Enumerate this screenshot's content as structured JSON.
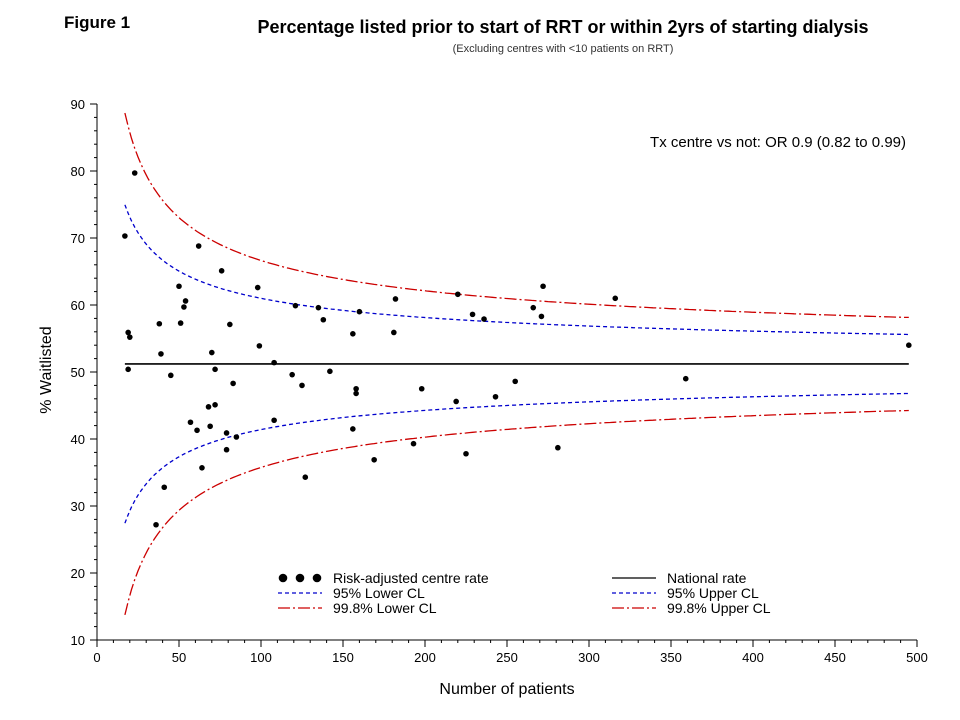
{
  "figure_label": "Figure 1",
  "chart_data": {
    "type": "scatter",
    "title": "Percentage listed prior to start of RRT or within 2yrs of starting dialysis",
    "subtitle": "(Excluding centres with <10 patients on RRT)",
    "xlabel": "Number of patients",
    "ylabel": "% Waitlisted",
    "xlim": [
      0,
      500
    ],
    "ylim": [
      10,
      90
    ],
    "xticks": [
      0,
      50,
      100,
      150,
      200,
      250,
      300,
      350,
      400,
      450,
      500
    ],
    "yticks": [
      10,
      20,
      30,
      40,
      50,
      60,
      70,
      80,
      90
    ],
    "annotation": "Tx centre vs not: OR 0.9 (0.82 to 0.99)",
    "national_rate": 51.2,
    "legend": {
      "position": "bottom-right",
      "entries": [
        {
          "key": "points",
          "label": "Risk-adjusted centre rate"
        },
        {
          "key": "national",
          "label": "National rate"
        },
        {
          "key": "lower95",
          "label": "95% Lower CL"
        },
        {
          "key": "upper95",
          "label": "95% Upper CL"
        },
        {
          "key": "lower998",
          "label": "99.8% Lower CL"
        },
        {
          "key": "upper998",
          "label": "99.8% Upper CL"
        }
      ]
    },
    "colors": {
      "points": "#000000",
      "national": "#000000",
      "cl95": "#0000cc",
      "cl998": "#cc0000"
    },
    "control_limit_z": {
      "cl95": 1.96,
      "cl998": 3.09
    },
    "control_limit_range": [
      17,
      495
    ],
    "points": [
      [
        17,
        70.3
      ],
      [
        19,
        55.9
      ],
      [
        19,
        50.4
      ],
      [
        20,
        55.2
      ],
      [
        23,
        79.7
      ],
      [
        36,
        27.2
      ],
      [
        38,
        57.2
      ],
      [
        39,
        52.7
      ],
      [
        41,
        32.8
      ],
      [
        45,
        49.5
      ],
      [
        50,
        62.8
      ],
      [
        51,
        57.3
      ],
      [
        53,
        59.7
      ],
      [
        54,
        60.6
      ],
      [
        57,
        42.5
      ],
      [
        61,
        41.3
      ],
      [
        62,
        68.8
      ],
      [
        64,
        35.7
      ],
      [
        68,
        44.8
      ],
      [
        69,
        41.9
      ],
      [
        70,
        52.9
      ],
      [
        72,
        50.4
      ],
      [
        72,
        45.1
      ],
      [
        76,
        65.1
      ],
      [
        79,
        40.9
      ],
      [
        79,
        38.4
      ],
      [
        81,
        57.1
      ],
      [
        83,
        48.3
      ],
      [
        85,
        40.3
      ],
      [
        98,
        62.6
      ],
      [
        99,
        53.9
      ],
      [
        108,
        51.4
      ],
      [
        108,
        42.8
      ],
      [
        119,
        49.6
      ],
      [
        121,
        59.9
      ],
      [
        125,
        48.0
      ],
      [
        127,
        34.3
      ],
      [
        135,
        59.6
      ],
      [
        138,
        57.8
      ],
      [
        142,
        50.1
      ],
      [
        156,
        55.7
      ],
      [
        156,
        41.5
      ],
      [
        158,
        47.5
      ],
      [
        158,
        46.8
      ],
      [
        160,
        59.0
      ],
      [
        169,
        36.9
      ],
      [
        181,
        55.9
      ],
      [
        182,
        60.9
      ],
      [
        193,
        39.3
      ],
      [
        198,
        47.5
      ],
      [
        219,
        45.6
      ],
      [
        220,
        61.6
      ],
      [
        225,
        37.8
      ],
      [
        229,
        58.6
      ],
      [
        236,
        57.9
      ],
      [
        243,
        46.3
      ],
      [
        255,
        48.6
      ],
      [
        266,
        59.6
      ],
      [
        271,
        58.3
      ],
      [
        272,
        62.8
      ],
      [
        281,
        38.7
      ],
      [
        316,
        61.0
      ],
      [
        359,
        49.0
      ],
      [
        495,
        54.0
      ]
    ]
  }
}
